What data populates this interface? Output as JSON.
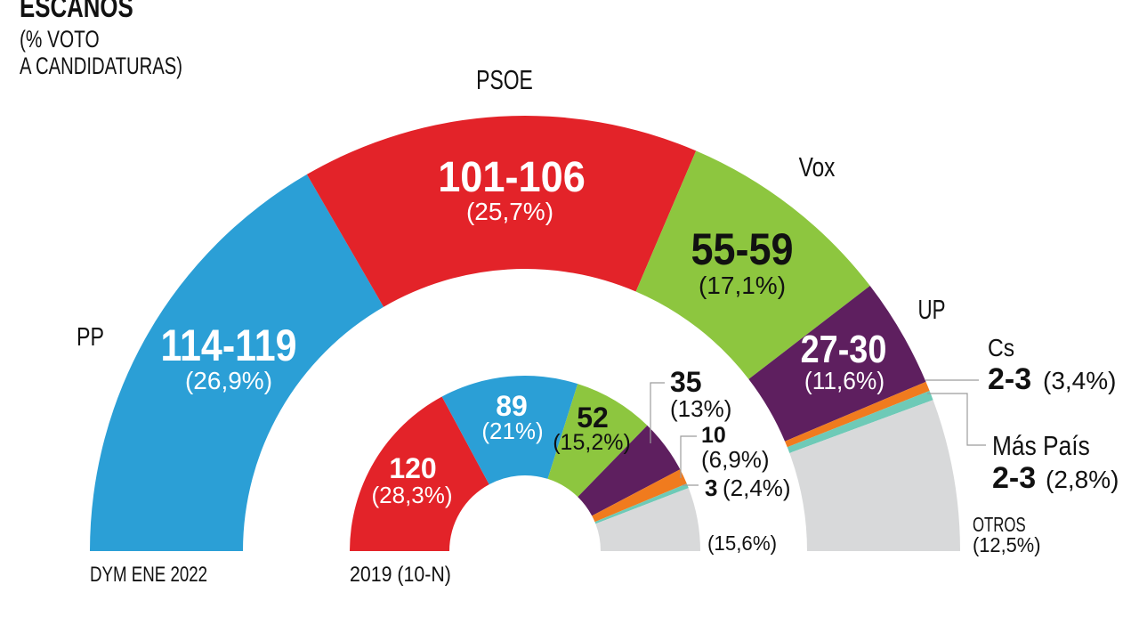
{
  "chart_data": [
    {
      "type": "pie",
      "variant": "semicircle-donut",
      "title": "ESCAÑOS",
      "subtitle_lines": [
        "(% VOTO",
        "A CANDIDATURAS)"
      ],
      "caption": "DYM ENE 2022",
      "slices": [
        {
          "party": "PP",
          "seats_label": "114-119",
          "seats_min": 114,
          "seats_max": 119,
          "vote_label": "(26,9%)",
          "vote_pct": 26.9,
          "color": "#2b9fd6"
        },
        {
          "party": "PSOE",
          "seats_label": "101-106",
          "seats_min": 101,
          "seats_max": 106,
          "vote_label": "(25,7%)",
          "vote_pct": 25.7,
          "color": "#e32329"
        },
        {
          "party": "Vox",
          "seats_label": "55-59",
          "seats_min": 55,
          "seats_max": 59,
          "vote_label": "(17,1%)",
          "vote_pct": 17.1,
          "color": "#8dc63f"
        },
        {
          "party": "UP",
          "seats_label": "27-30",
          "seats_min": 27,
          "seats_max": 30,
          "vote_label": "(11,6%)",
          "vote_pct": 11.6,
          "color": "#5e1f5f"
        },
        {
          "party": "Cs",
          "seats_label": "2-3",
          "seats_min": 2,
          "seats_max": 3,
          "vote_label": "(3,4%)",
          "vote_pct": 3.4,
          "color": "#f07b1e"
        },
        {
          "party": "Más País",
          "seats_label": "2-3",
          "seats_min": 2,
          "seats_max": 3,
          "vote_label": "(2,8%)",
          "vote_pct": 2.8,
          "color": "#6ecab7"
        },
        {
          "party": "OTROS",
          "vote_label": "(12,5%)",
          "vote_pct": 12.5,
          "color": "#d8d9da"
        }
      ]
    },
    {
      "type": "pie",
      "variant": "semicircle-donut",
      "caption": "2019 (10-N)",
      "slices": [
        {
          "party": "PSOE",
          "seats_label": "120",
          "seats_min": 120,
          "seats_max": 120,
          "vote_label": "(28,3%)",
          "vote_pct": 28.3,
          "color": "#e32329"
        },
        {
          "party": "PP",
          "seats_label": "89",
          "seats_min": 89,
          "seats_max": 89,
          "vote_label": "(21%)",
          "vote_pct": 21,
          "color": "#2b9fd6"
        },
        {
          "party": "Vox",
          "seats_label": "52",
          "seats_min": 52,
          "seats_max": 52,
          "vote_label": "(15,2%)",
          "vote_pct": 15.2,
          "color": "#8dc63f"
        },
        {
          "party": "UP",
          "seats_label": "35",
          "seats_min": 35,
          "seats_max": 35,
          "vote_label": "(13%)",
          "vote_pct": 13,
          "color": "#5e1f5f"
        },
        {
          "party": "Cs",
          "seats_label": "10",
          "seats_min": 10,
          "seats_max": 10,
          "vote_label": "(6,9%)",
          "vote_pct": 6.9,
          "color": "#f07b1e"
        },
        {
          "party": "Más País",
          "seats_label": "3",
          "seats_min": 3,
          "seats_max": 3,
          "vote_label": "(2,4%)",
          "vote_pct": 2.4,
          "color": "#6ecab7"
        },
        {
          "party": "OTROS",
          "vote_label": "(15,6%)",
          "vote_pct": 15.6,
          "color": "#d8d9da"
        }
      ]
    }
  ]
}
